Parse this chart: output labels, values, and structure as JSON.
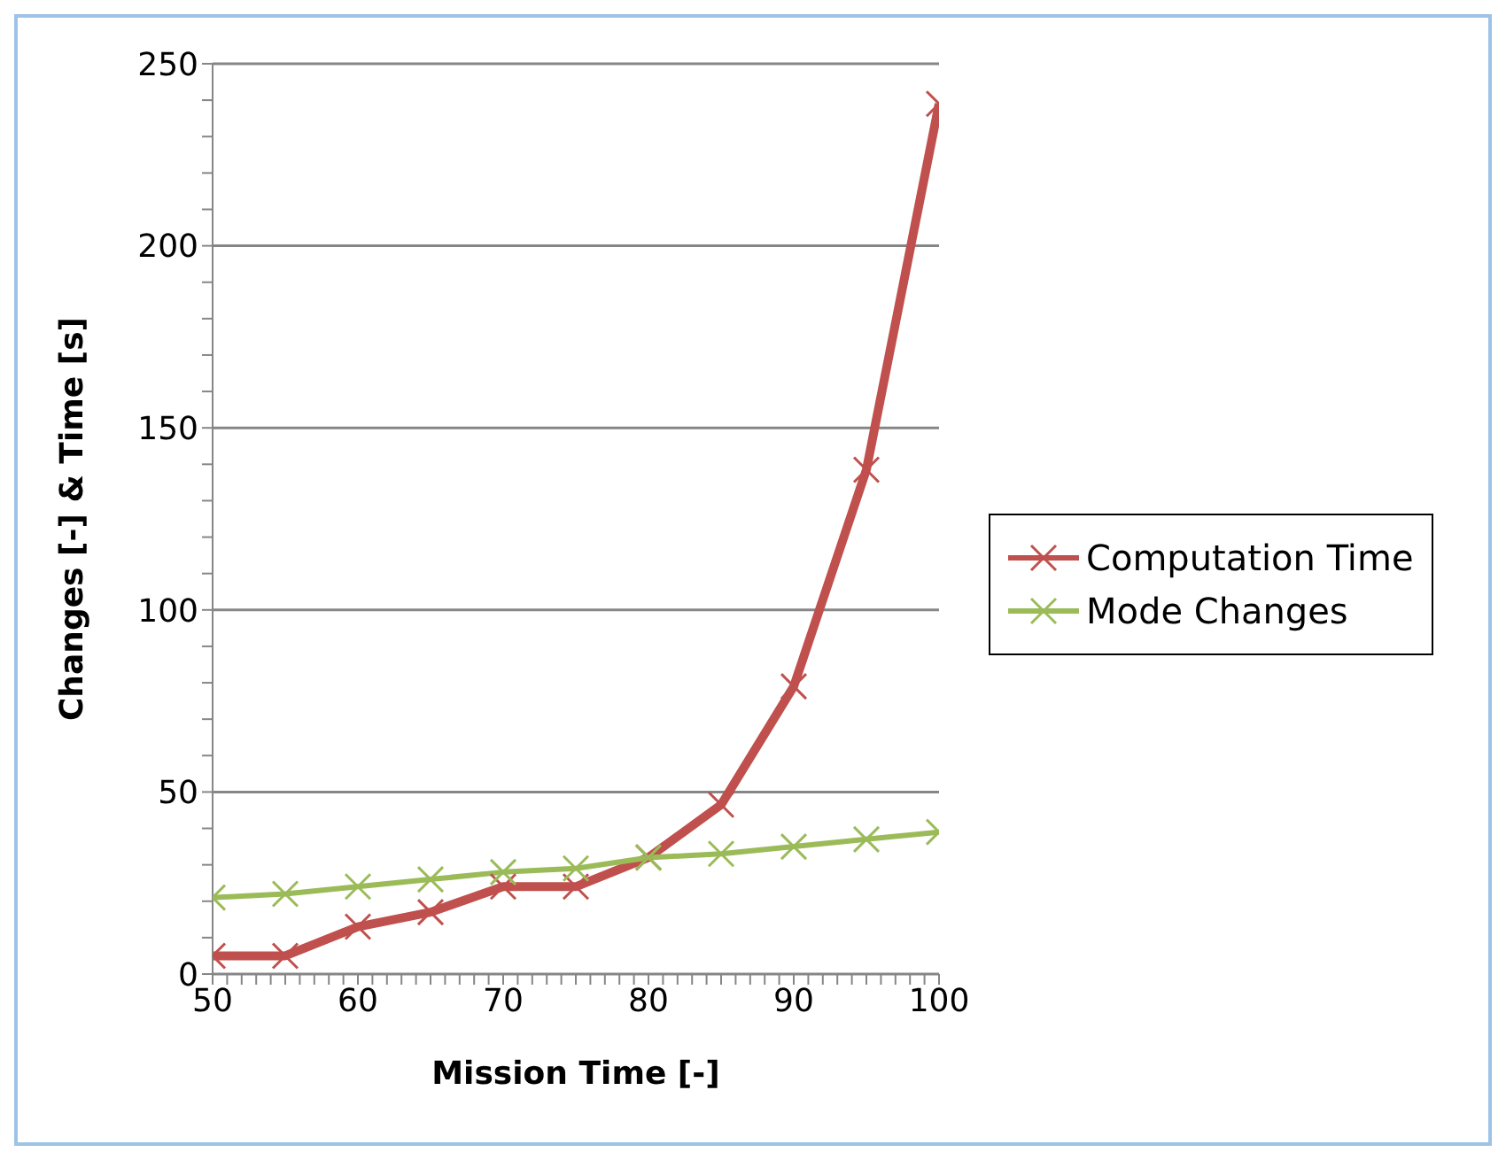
{
  "chart_data": {
    "type": "line",
    "xlabel": "Mission Time [-]",
    "ylabel": "Changes [-] & Time [s]",
    "x": [
      50,
      55,
      60,
      65,
      70,
      75,
      80,
      85,
      90,
      95,
      100
    ],
    "series": [
      {
        "name": "Computation Time",
        "color": "#c0504d",
        "values": [
          5,
          5,
          13,
          17,
          24,
          24,
          32,
          46.5,
          79,
          138.5,
          239
        ]
      },
      {
        "name": "Mode Changes",
        "color": "#9bbb59",
        "values": [
          21,
          22,
          24,
          26,
          28,
          29,
          32,
          33,
          35,
          37,
          39
        ]
      }
    ],
    "xlim": [
      50,
      100
    ],
    "xticks": [
      50,
      {
        "value": 51,
        "label": null
      },
      {
        "value": 52,
        "label": null
      },
      {
        "value": 53,
        "label": null
      },
      {
        "value": 54,
        "label": null
      },
      {
        "value": 55,
        "label": null
      },
      {
        "value": 56,
        "label": null
      },
      {
        "value": 57,
        "label": null
      },
      {
        "value": 58,
        "label": null
      },
      {
        "value": 59,
        "label": null
      },
      60,
      {
        "value": 61,
        "label": null
      },
      {
        "value": 62,
        "label": null
      },
      {
        "value": 63,
        "label": null
      },
      {
        "value": 64,
        "label": null
      },
      {
        "value": 65,
        "label": null
      },
      {
        "value": 66,
        "label": null
      },
      {
        "value": 67,
        "label": null
      },
      {
        "value": 68,
        "label": null
      },
      {
        "value": 69,
        "label": null
      },
      70,
      {
        "value": 71,
        "label": null
      },
      {
        "value": 72,
        "label": null
      },
      {
        "value": 73,
        "label": null
      },
      {
        "value": 74,
        "label": null
      },
      {
        "value": 75,
        "label": null
      },
      {
        "value": 76,
        "label": null
      },
      {
        "value": 77,
        "label": null
      },
      {
        "value": 78,
        "label": null
      },
      {
        "value": 79,
        "label": null
      },
      80,
      {
        "value": 81,
        "label": null
      },
      {
        "value": 82,
        "label": null
      },
      {
        "value": 83,
        "label": null
      },
      {
        "value": 84,
        "label": null
      },
      {
        "value": 85,
        "label": null
      },
      {
        "value": 86,
        "label": null
      },
      {
        "value": 87,
        "label": null
      },
      {
        "value": 88,
        "label": null
      },
      {
        "value": 89,
        "label": null
      },
      90,
      {
        "value": 91,
        "label": null
      },
      {
        "value": 92,
        "label": null
      },
      {
        "value": 93,
        "label": null
      },
      {
        "value": 94,
        "label": null
      },
      {
        "value": 95,
        "label": null
      },
      {
        "value": 96,
        "label": null
      },
      {
        "value": 97,
        "label": null
      },
      {
        "value": 98,
        "label": null
      },
      {
        "value": 99,
        "label": null
      },
      100
    ],
    "ylim": [
      0,
      250
    ],
    "yticks": [
      0,
      {
        "value": 10,
        "label": null
      },
      {
        "value": 20,
        "label": null
      },
      {
        "value": 30,
        "label": null
      },
      {
        "value": 40,
        "label": null
      },
      50,
      {
        "value": 60,
        "label": null
      },
      {
        "value": 70,
        "label": null
      },
      {
        "value": 80,
        "label": null
      },
      {
        "value": 90,
        "label": null
      },
      100,
      {
        "value": 110,
        "label": null
      },
      {
        "value": 120,
        "label": null
      },
      {
        "value": 130,
        "label": null
      },
      {
        "value": 140,
        "label": null
      },
      150,
      {
        "value": 160,
        "label": null
      },
      {
        "value": 170,
        "label": null
      },
      {
        "value": 180,
        "label": null
      },
      {
        "value": 190,
        "label": null
      },
      200,
      {
        "value": 210,
        "label": null
      },
      {
        "value": 220,
        "label": null
      },
      {
        "value": 230,
        "label": null
      },
      {
        "value": 240,
        "label": null
      },
      250
    ],
    "grid": "y",
    "legend": "right",
    "marker": "cross",
    "line_style": "solid"
  }
}
